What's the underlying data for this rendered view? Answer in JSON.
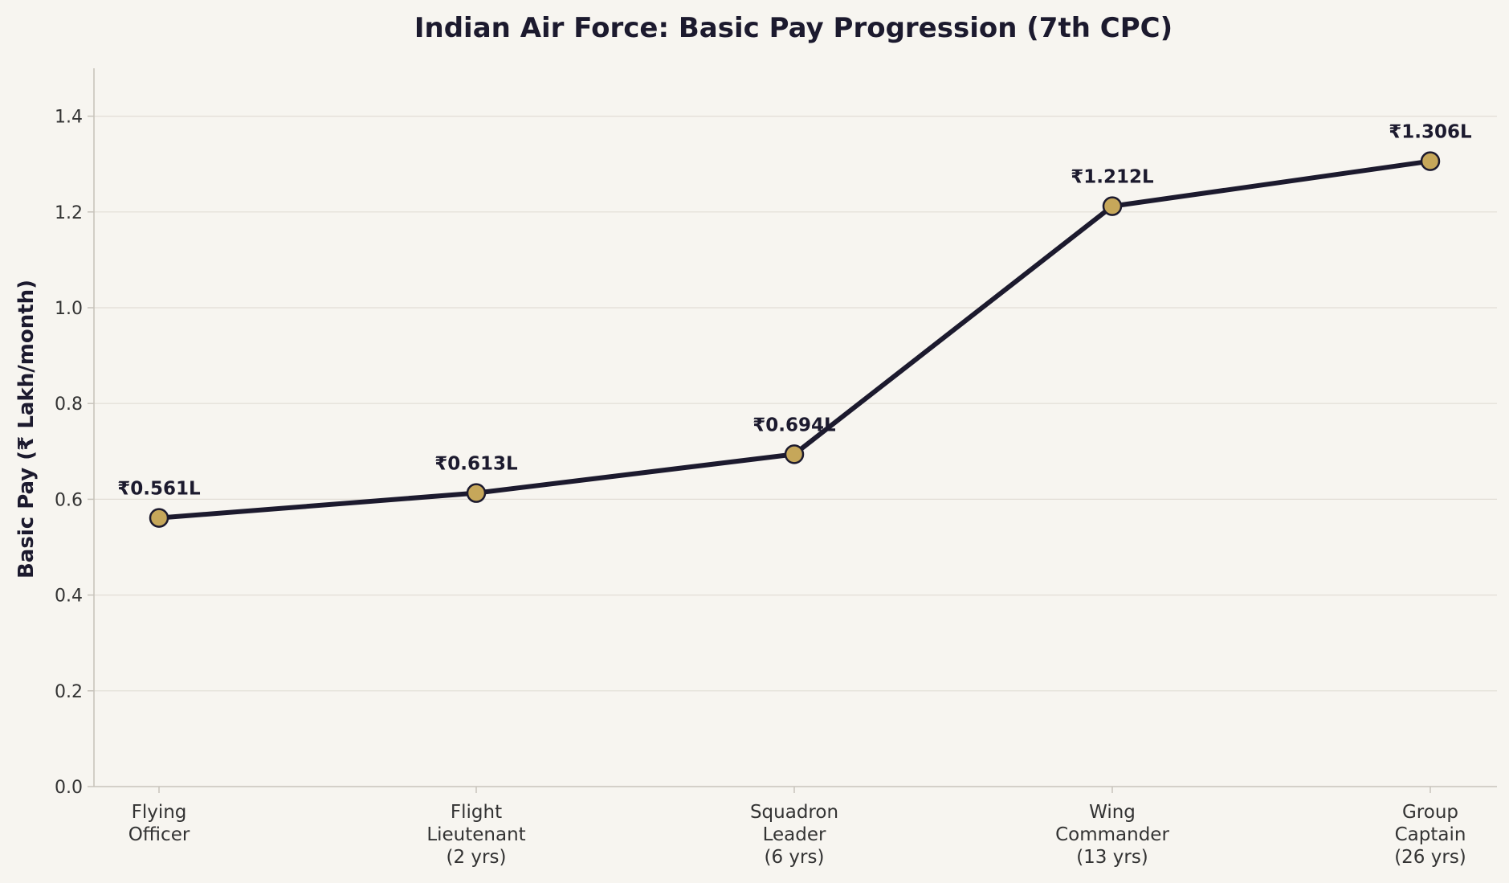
{
  "chart_data": {
    "type": "line",
    "title": "Indian Air Force: Basic Pay Progression (7th CPC)",
    "xlabel": "",
    "ylabel": "Basic Pay (₹ Lakh/month)",
    "ylim": [
      0,
      1.5
    ],
    "yticks": [
      0.0,
      0.2,
      0.4,
      0.6,
      0.8,
      1.0,
      1.2,
      1.4
    ],
    "ytick_labels": [
      "0.0",
      "0.2",
      "0.4",
      "0.6",
      "0.8",
      "1.0",
      "1.2",
      "1.4"
    ],
    "grid": "horizontal",
    "categories": [
      [
        "Flying",
        "Officer"
      ],
      [
        "Flight",
        "Lieutenant",
        "(2 yrs)"
      ],
      [
        "Squadron",
        "Leader",
        "(6 yrs)"
      ],
      [
        "Wing",
        "Commander",
        "(13 yrs)"
      ],
      [
        "Group",
        "Captain",
        "(26 yrs)"
      ]
    ],
    "series": [
      {
        "values": [
          0.561,
          0.613,
          0.694,
          1.212,
          1.306
        ],
        "data_labels": [
          "₹0.561L",
          "₹0.613L",
          "₹0.694L",
          "₹1.212L",
          "₹1.306L"
        ]
      }
    ],
    "colors": {
      "background": "#f7f5f0",
      "line": "#1c1a2e",
      "marker_fill": "#c6a75a",
      "marker_edge": "#1c1a2e",
      "grid": "#e2ded6",
      "axis": "#c8c4bc",
      "text": "#1c1a2e",
      "tick_text": "#333333"
    }
  }
}
